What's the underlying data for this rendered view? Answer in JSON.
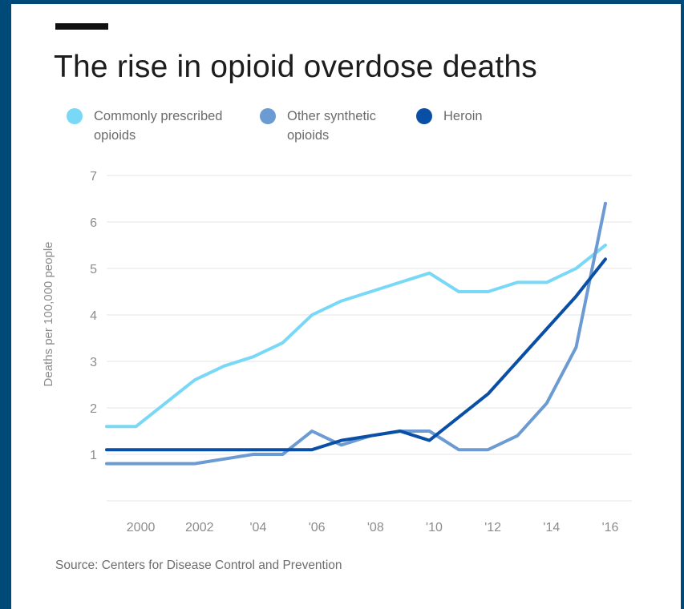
{
  "title": "The rise in opioid overdose deaths",
  "source": "Source: Centers for Disease Control and Prevention",
  "legend": [
    {
      "label": "Commonly prescribed opioids",
      "color": "#7ad8f7"
    },
    {
      "label": "Other synthetic opioids",
      "color": "#6b9bd2"
    },
    {
      "label": "Heroin",
      "color": "#0a4fa6"
    }
  ],
  "chart_data": {
    "type": "line",
    "title": "The rise in opioid overdose deaths",
    "xlabel": "",
    "ylabel": "Deaths per 100,000 people",
    "ylim": [
      0,
      7
    ],
    "yticks": [
      1,
      2,
      3,
      4,
      5,
      6,
      7
    ],
    "xlim": [
      1999,
      2016
    ],
    "xticks": [
      {
        "value": 2000,
        "label": "2000"
      },
      {
        "value": 2002,
        "label": "2002"
      },
      {
        "value": 2004,
        "label": "'04"
      },
      {
        "value": 2006,
        "label": "'06"
      },
      {
        "value": 2008,
        "label": "'08"
      },
      {
        "value": 2010,
        "label": "'10"
      },
      {
        "value": 2012,
        "label": "'12"
      },
      {
        "value": 2014,
        "label": "'14"
      },
      {
        "value": 2016,
        "label": "'16"
      }
    ],
    "grid": true,
    "legend_position": "top",
    "x": [
      1999,
      2000,
      2001,
      2002,
      2003,
      2004,
      2005,
      2006,
      2007,
      2008,
      2009,
      2010,
      2011,
      2012,
      2013,
      2014,
      2015,
      2016
    ],
    "series": [
      {
        "name": "Commonly prescribed opioids",
        "color": "#7ad8f7",
        "values": [
          1.6,
          1.6,
          2.1,
          2.6,
          2.9,
          3.1,
          3.4,
          4.0,
          4.3,
          4.5,
          4.7,
          4.9,
          4.5,
          4.5,
          4.7,
          4.7,
          5.0,
          5.5
        ]
      },
      {
        "name": "Other synthetic opioids",
        "color": "#6b9bd2",
        "values": [
          0.8,
          0.8,
          0.8,
          0.8,
          0.9,
          1.0,
          1.0,
          1.5,
          1.2,
          1.4,
          1.5,
          1.5,
          1.1,
          1.1,
          1.4,
          2.1,
          3.3,
          6.4
        ]
      },
      {
        "name": "Heroin",
        "color": "#0a4fa6",
        "values": [
          1.1,
          1.1,
          1.1,
          1.1,
          1.1,
          1.1,
          1.1,
          1.1,
          1.3,
          1.4,
          1.5,
          1.3,
          1.8,
          2.3,
          3.0,
          3.7,
          4.4,
          5.2
        ]
      }
    ]
  }
}
